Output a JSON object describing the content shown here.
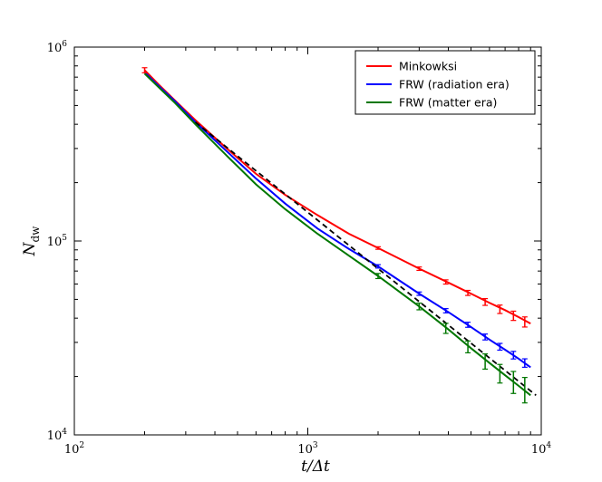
{
  "chart_data": {
    "type": "line",
    "title": "",
    "xlabel": "t/Δt",
    "ylabel": "N",
    "ylabel_subscript": "dw",
    "xscale": "log",
    "yscale": "log",
    "xlim": [
      100,
      10000
    ],
    "ylim": [
      10000,
      1000000
    ],
    "x_ticks": [
      {
        "base": "10",
        "exp": "2",
        "value": 100
      },
      {
        "base": "10",
        "exp": "3",
        "value": 1000
      },
      {
        "base": "10",
        "exp": "4",
        "value": 10000
      }
    ],
    "y_ticks": [
      {
        "base": "10",
        "exp": "4",
        "value": 10000
      },
      {
        "base": "10",
        "exp": "5",
        "value": 100000
      },
      {
        "base": "10",
        "exp": "6",
        "value": 1000000
      }
    ],
    "grid": false,
    "legend_position": "top-right",
    "series": [
      {
        "name": "Minkowksi",
        "color": "#ff0000",
        "x": [
          200,
          230,
          270,
          330,
          450,
          600,
          800,
          1100,
          1500,
          2000,
          3000,
          4000,
          5000,
          6000,
          7000,
          8000,
          9000
        ],
        "y": [
          760000,
          640000,
          530000,
          420000,
          300000,
          222000,
          173000,
          136000,
          109000,
          92000,
          72000,
          61000,
          53500,
          48000,
          44000,
          40500,
          37500
        ],
        "err_x": [
          200,
          2000,
          3000,
          3900,
          4850,
          5750,
          6650,
          7600,
          8500
        ],
        "err_y": [
          760000,
          92000,
          72000,
          61500,
          54000,
          48500,
          44500,
          41200,
          38300
        ],
        "err_frac": [
          0.03,
          0.015,
          0.02,
          0.025,
          0.03,
          0.04,
          0.05,
          0.055,
          0.06
        ]
      },
      {
        "name": "FRW (radiation era)",
        "color": "#0000ff",
        "x": [
          200,
          230,
          270,
          330,
          450,
          600,
          800,
          1100,
          1500,
          2000,
          3000,
          4000,
          5000,
          6000,
          7000,
          8000,
          9000
        ],
        "y": [
          740000,
          630000,
          525000,
          410000,
          290000,
          210000,
          156000,
          116000,
          91000,
          74000,
          53500,
          43000,
          36000,
          31000,
          27500,
          24700,
          22300
        ],
        "err_x": [
          2000,
          3000,
          3900,
          4850,
          5750,
          6650,
          7600,
          8500
        ],
        "err_y": [
          74000,
          53500,
          43700,
          37000,
          32000,
          28500,
          25800,
          23500
        ],
        "err_frac": [
          0.02,
          0.02,
          0.025,
          0.03,
          0.035,
          0.04,
          0.045,
          0.05
        ]
      },
      {
        "name": "FRW (matter era)",
        "color": "#007700",
        "x": [
          200,
          230,
          270,
          330,
          450,
          600,
          800,
          1100,
          1500,
          2000,
          3000,
          4000,
          5000,
          6000,
          7000,
          8000,
          9000
        ],
        "y": [
          730000,
          620000,
          515000,
          400000,
          275000,
          196000,
          146000,
          109000,
          84000,
          66000,
          46000,
          35000,
          28000,
          23500,
          20300,
          17900,
          16000
        ],
        "err_x": [
          2000,
          3000,
          3900,
          4850,
          5750,
          6650,
          7600,
          8500
        ],
        "err_y": [
          66000,
          46000,
          35500,
          28500,
          24000,
          20800,
          18800,
          17200
        ],
        "err_frac": [
          0.03,
          0.04,
          0.06,
          0.07,
          0.09,
          0.11,
          0.13,
          0.15
        ]
      },
      {
        "name": "",
        "color": "#000000",
        "dashed": true,
        "x": [
          330,
          9500
        ],
        "y": [
          410000,
          16000
        ]
      }
    ]
  }
}
